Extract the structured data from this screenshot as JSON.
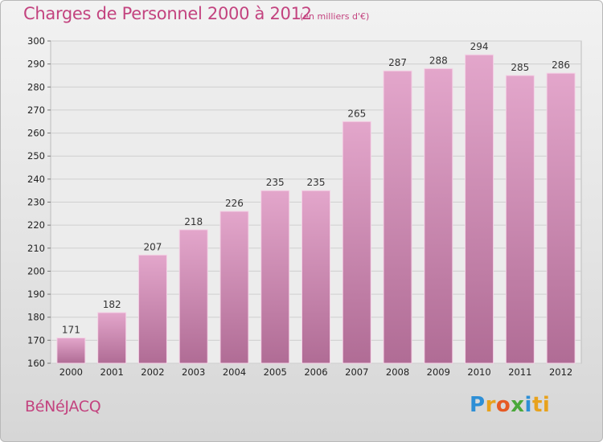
{
  "title": "Charges de Personnel 2000 à 2012",
  "subtitle": "(en milliers d'€)",
  "commune": "BéNéJACQ",
  "logo": {
    "text": "Proxiti",
    "colors": [
      "#2e8fd6",
      "#e8a21c",
      "#e65a24",
      "#4aa83a",
      "#2e8fd6",
      "#e8a21c"
    ]
  },
  "colors": {
    "title": "#c3437f",
    "bar_top": "#e3a6cb",
    "bar_bottom": "#b06c95",
    "grid": "#cfcfcf"
  },
  "chart_data": {
    "type": "bar",
    "title": "Charges de Personnel 2000 à 2012",
    "subtitle": "(en milliers d'€)",
    "categories": [
      "2000",
      "2001",
      "2002",
      "2003",
      "2004",
      "2005",
      "2006",
      "2007",
      "2008",
      "2009",
      "2010",
      "2011",
      "2012"
    ],
    "values": [
      171,
      182,
      207,
      218,
      226,
      235,
      235,
      265,
      287,
      288,
      294,
      285,
      286
    ],
    "ylim": [
      160,
      300
    ],
    "yticks": [
      160,
      170,
      180,
      190,
      200,
      210,
      220,
      230,
      240,
      250,
      260,
      270,
      280,
      290,
      300
    ],
    "grid": true,
    "data_labels": true
  }
}
